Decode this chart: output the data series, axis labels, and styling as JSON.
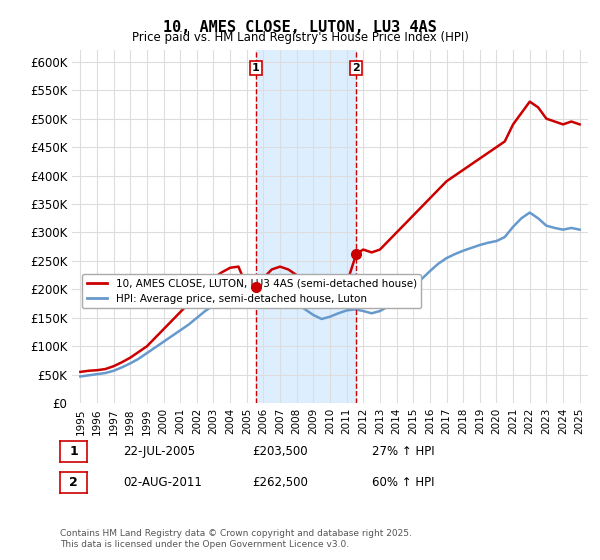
{
  "title": "10, AMES CLOSE, LUTON, LU3 4AS",
  "subtitle": "Price paid vs. HM Land Registry's House Price Index (HPI)",
  "ylabel": "",
  "background_color": "#ffffff",
  "plot_bg_color": "#ffffff",
  "grid_color": "#dddddd",
  "ylim": [
    0,
    620000
  ],
  "yticks": [
    0,
    50000,
    100000,
    150000,
    200000,
    250000,
    300000,
    350000,
    400000,
    450000,
    500000,
    550000,
    600000
  ],
  "ytick_labels": [
    "£0",
    "£50K",
    "£100K",
    "£150K",
    "£200K",
    "£250K",
    "£300K",
    "£350K",
    "£400K",
    "£450K",
    "£500K",
    "£550K",
    "£600K"
  ],
  "marker1": {
    "date_str": "22-JUL-2005",
    "price": 203500,
    "label": "1",
    "pct": "27% ↑ HPI"
  },
  "marker2": {
    "date_str": "02-AUG-2011",
    "price": 262500,
    "label": "2",
    "pct": "60% ↑ HPI"
  },
  "legend_house": "10, AMES CLOSE, LUTON, LU3 4AS (semi-detached house)",
  "legend_hpi": "HPI: Average price, semi-detached house, Luton",
  "footnote": "Contains HM Land Registry data © Crown copyright and database right 2025.\nThis data is licensed under the Open Government Licence v3.0.",
  "house_color": "#cc0000",
  "hpi_color": "#6699cc",
  "shade_color": "#ddeeff",
  "house_line": {
    "x": [
      1995.0,
      1995.5,
      1996.0,
      1996.5,
      1997.0,
      1997.5,
      1998.0,
      1998.5,
      1999.0,
      1999.5,
      2000.0,
      2000.5,
      2001.0,
      2001.5,
      2002.0,
      2002.5,
      2003.0,
      2003.5,
      2004.0,
      2004.5,
      2005.0,
      2005.55,
      2006.0,
      2006.5,
      2007.0,
      2007.5,
      2008.0,
      2008.5,
      2009.0,
      2009.5,
      2010.0,
      2010.5,
      2011.0,
      2011.58,
      2012.0,
      2012.5,
      2013.0,
      2013.5,
      2014.0,
      2014.5,
      2015.0,
      2015.5,
      2016.0,
      2016.5,
      2017.0,
      2017.5,
      2018.0,
      2018.5,
      2019.0,
      2019.5,
      2020.0,
      2020.5,
      2021.0,
      2021.5,
      2022.0,
      2022.5,
      2023.0,
      2023.5,
      2024.0,
      2024.5,
      2025.0
    ],
    "y": [
      55000,
      57000,
      58000,
      60000,
      65000,
      72000,
      80000,
      90000,
      100000,
      115000,
      130000,
      145000,
      160000,
      175000,
      195000,
      210000,
      220000,
      230000,
      238000,
      240000,
      205000,
      203500,
      220000,
      235000,
      240000,
      235000,
      225000,
      210000,
      195000,
      185000,
      190000,
      200000,
      210000,
      262500,
      270000,
      265000,
      270000,
      285000,
      300000,
      315000,
      330000,
      345000,
      360000,
      375000,
      390000,
      400000,
      410000,
      420000,
      430000,
      440000,
      450000,
      460000,
      490000,
      510000,
      530000,
      520000,
      500000,
      495000,
      490000,
      495000,
      490000
    ]
  },
  "hpi_line": {
    "x": [
      1995.0,
      1995.5,
      1996.0,
      1996.5,
      1997.0,
      1997.5,
      1998.0,
      1998.5,
      1999.0,
      1999.5,
      2000.0,
      2000.5,
      2001.0,
      2001.5,
      2002.0,
      2002.5,
      2003.0,
      2003.5,
      2004.0,
      2004.5,
      2005.0,
      2005.5,
      2006.0,
      2006.5,
      2007.0,
      2007.5,
      2008.0,
      2008.5,
      2009.0,
      2009.5,
      2010.0,
      2010.5,
      2011.0,
      2011.5,
      2012.0,
      2012.5,
      2013.0,
      2013.5,
      2014.0,
      2014.5,
      2015.0,
      2015.5,
      2016.0,
      2016.5,
      2017.0,
      2017.5,
      2018.0,
      2018.5,
      2019.0,
      2019.5,
      2020.0,
      2020.5,
      2021.0,
      2021.5,
      2022.0,
      2022.5,
      2023.0,
      2023.5,
      2024.0,
      2024.5,
      2025.0
    ],
    "y": [
      47000,
      49000,
      51000,
      53000,
      57000,
      63000,
      70000,
      78000,
      88000,
      98000,
      108000,
      118000,
      128000,
      138000,
      150000,
      162000,
      172000,
      180000,
      188000,
      192000,
      168000,
      172000,
      178000,
      182000,
      185000,
      182000,
      175000,
      165000,
      155000,
      148000,
      152000,
      158000,
      163000,
      165000,
      162000,
      158000,
      162000,
      170000,
      180000,
      192000,
      205000,
      218000,
      232000,
      245000,
      255000,
      262000,
      268000,
      273000,
      278000,
      282000,
      285000,
      292000,
      310000,
      325000,
      335000,
      325000,
      312000,
      308000,
      305000,
      308000,
      305000
    ]
  },
  "xlim": [
    1994.5,
    2025.5
  ],
  "xticks": [
    1995,
    1996,
    1997,
    1998,
    1999,
    2000,
    2001,
    2002,
    2003,
    2004,
    2005,
    2006,
    2007,
    2008,
    2009,
    2010,
    2011,
    2012,
    2013,
    2014,
    2015,
    2016,
    2017,
    2018,
    2019,
    2020,
    2021,
    2022,
    2023,
    2024,
    2025
  ],
  "marker1_x": 2005.55,
  "marker2_x": 2011.58
}
